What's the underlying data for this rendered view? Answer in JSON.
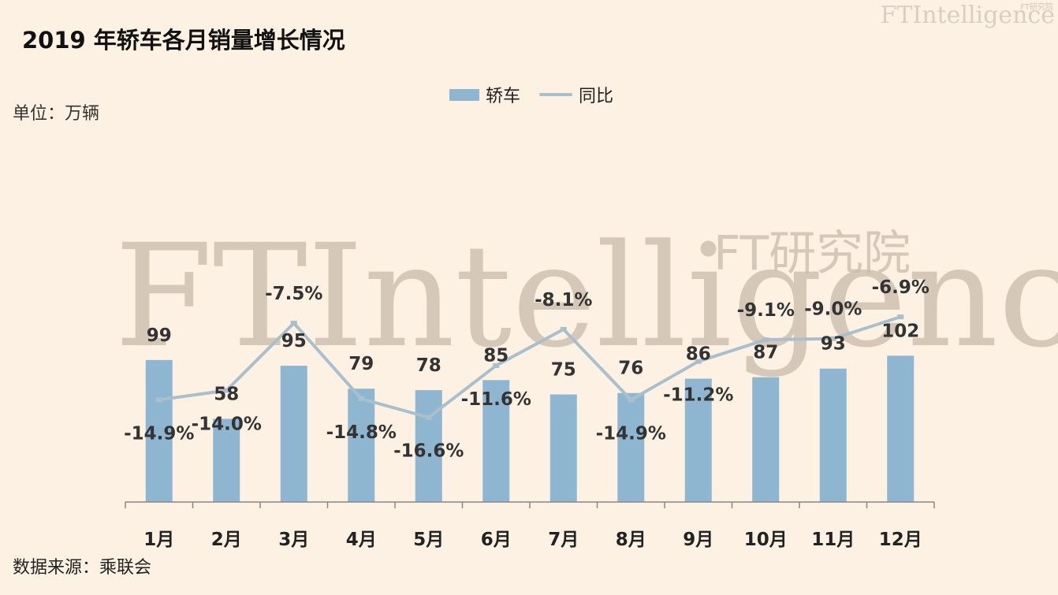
{
  "title": "2019 年轿车各月销量增长情况",
  "unit": "单位：万辆",
  "source": "数据来源：乘联会",
  "brand": "FTIntelligence",
  "brand_cn": "FT研究院",
  "watermark": "FTIntelligence",
  "watermark_cn": "FT研究院",
  "colors": {
    "bar": "#8fb6d0",
    "line": "#a9c0cc",
    "background": "#fdf1e3"
  },
  "chart_data": {
    "type": "bar",
    "categories": [
      "1月",
      "2月",
      "3月",
      "4月",
      "5月",
      "6月",
      "7月",
      "8月",
      "9月",
      "10月",
      "11月",
      "12月"
    ],
    "series": [
      {
        "name": "轿车",
        "type": "bar",
        "values": [
          99,
          58,
          95,
          79,
          78,
          85,
          75,
          76,
          86,
          87,
          93,
          102
        ]
      },
      {
        "name": "同比",
        "type": "line",
        "values": [
          -14.9,
          -14.0,
          -7.5,
          -14.8,
          -16.6,
          -11.6,
          -8.1,
          -14.9,
          -11.2,
          -9.1,
          -9.0,
          -6.9
        ],
        "labels": [
          "-14.9%",
          "-14.0%",
          "-7.5%",
          "-14.8%",
          "-16.6%",
          "-11.6%",
          "-8.1%",
          "-14.9%",
          "-11.2%",
          "-9.1%",
          "-9.0%",
          "-6.9%"
        ]
      }
    ],
    "legend": {
      "position": "top-center",
      "labels": [
        "轿车",
        "同比"
      ]
    },
    "grid": false
  }
}
